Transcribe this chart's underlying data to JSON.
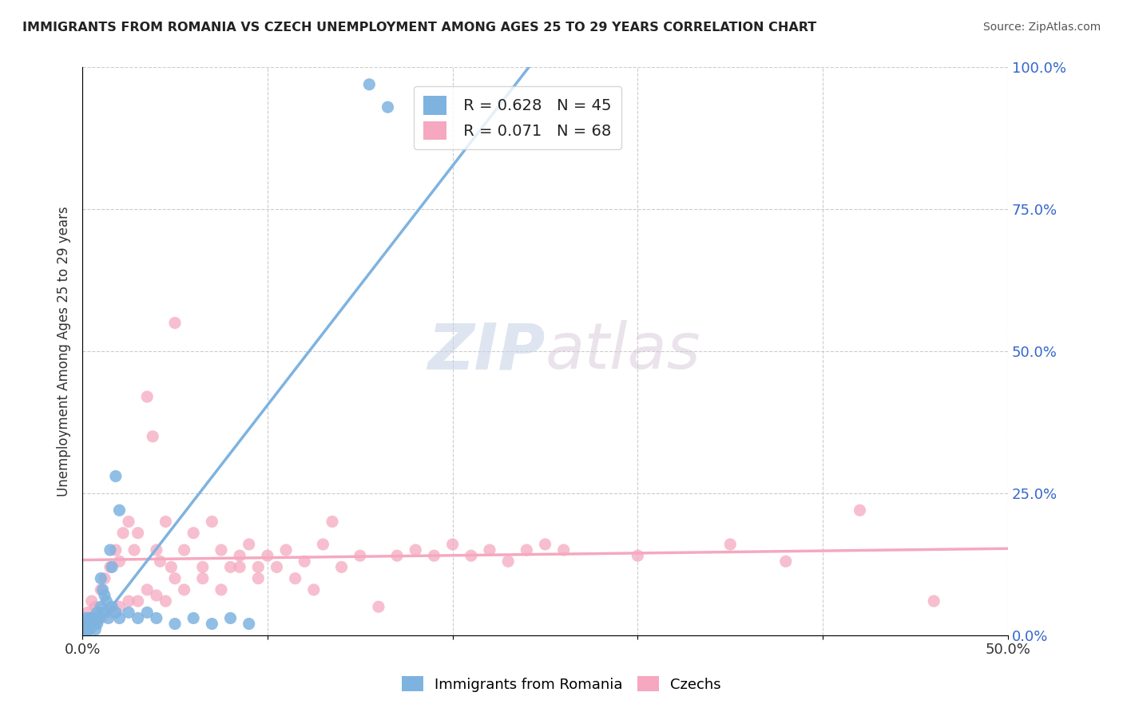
{
  "title": "IMMIGRANTS FROM ROMANIA VS CZECH UNEMPLOYMENT AMONG AGES 25 TO 29 YEARS CORRELATION CHART",
  "source": "Source: ZipAtlas.com",
  "ylabel": "Unemployment Among Ages 25 to 29 years",
  "xlim": [
    0.0,
    0.5
  ],
  "ylim": [
    0.0,
    1.0
  ],
  "xtick_positions": [
    0.0,
    0.1,
    0.2,
    0.3,
    0.4,
    0.5
  ],
  "xticklabels": [
    "0.0%",
    "",
    "",
    "",
    "",
    "50.0%"
  ],
  "yticks_right": [
    0.0,
    0.25,
    0.5,
    0.75,
    1.0
  ],
  "ytick_right_labels": [
    "0.0%",
    "25.0%",
    "50.0%",
    "75.0%",
    "100.0%"
  ],
  "blue_color": "#7eb3e0",
  "pink_color": "#f5a8c0",
  "blue_label": "Immigrants from Romania",
  "pink_label": "Czechs",
  "blue_R": 0.628,
  "blue_N": 45,
  "pink_R": 0.071,
  "pink_N": 68,
  "legend_text_color": "#3366cc",
  "watermark_zip": "ZIP",
  "watermark_atlas": "atlas",
  "background_color": "#ffffff",
  "blue_scatter_x": [
    0.001,
    0.002,
    0.002,
    0.003,
    0.003,
    0.004,
    0.004,
    0.005,
    0.006,
    0.007,
    0.008,
    0.009,
    0.01,
    0.011,
    0.012,
    0.013,
    0.015,
    0.016,
    0.018,
    0.02,
    0.002,
    0.003,
    0.004,
    0.005,
    0.006,
    0.007,
    0.008,
    0.009,
    0.01,
    0.012,
    0.014,
    0.016,
    0.018,
    0.02,
    0.025,
    0.03,
    0.035,
    0.04,
    0.05,
    0.06,
    0.07,
    0.08,
    0.09,
    0.155,
    0.165
  ],
  "blue_scatter_y": [
    0.02,
    0.01,
    0.03,
    0.02,
    0.01,
    0.02,
    0.03,
    0.02,
    0.03,
    0.02,
    0.04,
    0.03,
    0.1,
    0.08,
    0.07,
    0.06,
    0.15,
    0.12,
    0.28,
    0.22,
    0.01,
    0.02,
    0.01,
    0.03,
    0.02,
    0.01,
    0.02,
    0.03,
    0.05,
    0.04,
    0.03,
    0.05,
    0.04,
    0.03,
    0.04,
    0.03,
    0.04,
    0.03,
    0.02,
    0.03,
    0.02,
    0.03,
    0.02,
    0.97,
    0.93
  ],
  "pink_scatter_x": [
    0.003,
    0.005,
    0.007,
    0.01,
    0.012,
    0.015,
    0.018,
    0.02,
    0.022,
    0.025,
    0.028,
    0.03,
    0.035,
    0.038,
    0.04,
    0.042,
    0.045,
    0.048,
    0.05,
    0.055,
    0.06,
    0.065,
    0.07,
    0.075,
    0.08,
    0.085,
    0.09,
    0.095,
    0.1,
    0.11,
    0.12,
    0.13,
    0.14,
    0.15,
    0.16,
    0.17,
    0.18,
    0.19,
    0.2,
    0.21,
    0.22,
    0.23,
    0.24,
    0.25,
    0.26,
    0.3,
    0.35,
    0.38,
    0.42,
    0.46,
    0.01,
    0.02,
    0.03,
    0.04,
    0.05,
    0.015,
    0.025,
    0.035,
    0.045,
    0.055,
    0.065,
    0.075,
    0.085,
    0.095,
    0.105,
    0.115,
    0.125,
    0.135
  ],
  "pink_scatter_y": [
    0.04,
    0.06,
    0.05,
    0.08,
    0.1,
    0.12,
    0.15,
    0.13,
    0.18,
    0.2,
    0.15,
    0.18,
    0.42,
    0.35,
    0.15,
    0.13,
    0.2,
    0.12,
    0.1,
    0.15,
    0.18,
    0.12,
    0.2,
    0.15,
    0.12,
    0.14,
    0.16,
    0.12,
    0.14,
    0.15,
    0.13,
    0.16,
    0.12,
    0.14,
    0.05,
    0.14,
    0.15,
    0.14,
    0.16,
    0.14,
    0.15,
    0.13,
    0.15,
    0.16,
    0.15,
    0.14,
    0.16,
    0.13,
    0.22,
    0.06,
    0.03,
    0.05,
    0.06,
    0.07,
    0.55,
    0.04,
    0.06,
    0.08,
    0.06,
    0.08,
    0.1,
    0.08,
    0.12,
    0.1,
    0.12,
    0.1,
    0.08,
    0.2
  ]
}
